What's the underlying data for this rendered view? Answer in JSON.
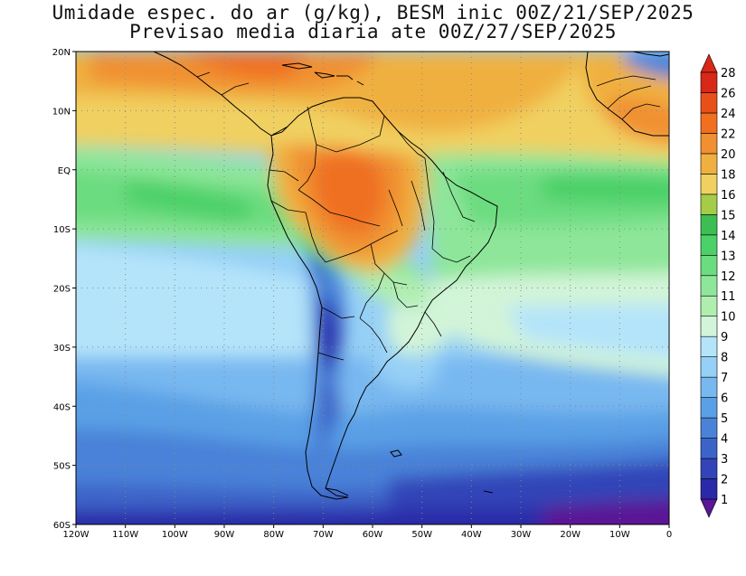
{
  "title": {
    "line1": "Umidade espec. do ar (g/kg), BESM inic 00Z/21/SEP/2025",
    "line2": "Previsao media diaria ate 00Z/27/SEP/2025"
  },
  "axes": {
    "lat_labels": [
      "20N",
      "10N",
      "EQ",
      "10S",
      "20S",
      "30S",
      "40S",
      "50S",
      "60S"
    ],
    "lon_labels": [
      "120W",
      "110W",
      "100W",
      "90W",
      "80W",
      "70W",
      "60W",
      "50W",
      "40W",
      "30W",
      "20W",
      "10W",
      "0"
    ],
    "grid": "dotted"
  },
  "colorbar": {
    "labels": [
      "1",
      "2",
      "3",
      "4",
      "5",
      "6",
      "7",
      "8",
      "9",
      "10",
      "11",
      "12",
      "13",
      "14",
      "15",
      "16",
      "18",
      "20",
      "22",
      "24",
      "26",
      "28"
    ],
    "colors": [
      "#5a1696",
      "#2a2aa8",
      "#3344b8",
      "#3c64c8",
      "#4a82d8",
      "#5aa0e6",
      "#78b8f0",
      "#96d0f6",
      "#b4e4fa",
      "#d2f4d8",
      "#b0eeb0",
      "#8ee69a",
      "#6cdc80",
      "#4cd068",
      "#3cbe52",
      "#a4cc48",
      "#f0d060",
      "#f0b040",
      "#f09030",
      "#f07020",
      "#e85018",
      "#d82818"
    ],
    "low_arrow_color": "#5a1696",
    "high_arrow_color": "#d82818"
  },
  "map": {
    "variable": "specific humidity",
    "units": "g/kg",
    "region": "South America and adjacent Atlantic/Pacific"
  }
}
